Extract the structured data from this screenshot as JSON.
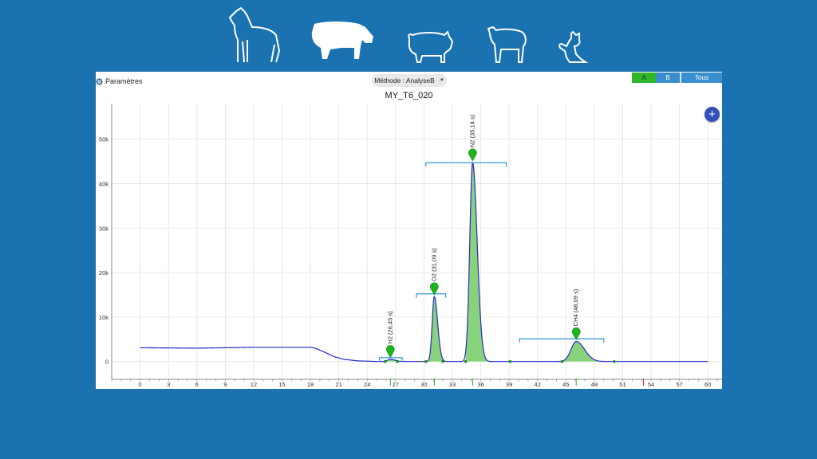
{
  "animals": [
    {
      "name": "horse",
      "selected": false
    },
    {
      "name": "cow",
      "selected": true
    },
    {
      "name": "pig",
      "selected": false
    },
    {
      "name": "sheep",
      "selected": false
    },
    {
      "name": "cat",
      "selected": false
    }
  ],
  "toolbar": {
    "params_label": "Paramètres",
    "params_icon": "gear-icon",
    "method_label": "Méthode : AnalyseB",
    "segments": [
      "A",
      "B",
      "Tous"
    ],
    "active_segment": "A"
  },
  "colors": {
    "background": "#1a72b1",
    "trace": "#2929cc",
    "peak_fill": "#88d27c",
    "bracket": "#2f9ad6",
    "marker": "#1fb41f",
    "accent_button": "#3350b8"
  },
  "chart_data": {
    "type": "line",
    "title": "MY_T6_020",
    "xlim": [
      -3,
      61.5
    ],
    "ylim": [
      -4000,
      58000
    ],
    "x_ticks": [
      0,
      3,
      6,
      9,
      12,
      15,
      18,
      21,
      24,
      27,
      30,
      33,
      36,
      39,
      42,
      45,
      48,
      51,
      54,
      57,
      60
    ],
    "y_ticks": [
      {
        "value": 0,
        "label": "0"
      },
      {
        "value": 10000,
        "label": "10k"
      },
      {
        "value": 20000,
        "label": "20k"
      },
      {
        "value": 30000,
        "label": "30k"
      },
      {
        "value": 40000,
        "label": "40k"
      },
      {
        "value": 50000,
        "label": "50k"
      }
    ],
    "grid": true,
    "baseline": [
      [
        0,
        3100
      ],
      [
        6,
        3000
      ],
      [
        12,
        3200
      ],
      [
        18,
        3200
      ],
      [
        18.5,
        3000
      ],
      [
        19.5,
        2100
      ],
      [
        20.5,
        1100
      ],
      [
        21.5,
        500
      ],
      [
        23,
        150
      ],
      [
        25,
        0
      ],
      [
        60,
        0
      ]
    ],
    "peaks": [
      {
        "name": "H2 (26,45 s)",
        "rt": 26.45,
        "height": 500,
        "width": 0.3,
        "bracket": [
          25.3,
          27.7
        ],
        "bracket_y": 150,
        "integration": [
          25.9,
          27.2
        ]
      },
      {
        "name": "O2 (31,09 s)",
        "rt": 31.09,
        "height": 14600,
        "width": 0.22,
        "bracket": [
          29.2,
          32.3
        ],
        "bracket_y": 14500,
        "integration": [
          30.2,
          32.0
        ]
      },
      {
        "name": "N2 (35,14 s)",
        "rt": 35.14,
        "height": 44700,
        "width": 0.3,
        "bracket": [
          30.2,
          38.7
        ],
        "bracket_y": 44000,
        "integration": [
          34.4,
          39.1
        ]
      },
      {
        "name": "CH4 (46,09 s)",
        "rt": 46.09,
        "height": 4500,
        "width": 0.55,
        "bracket": [
          40.1,
          49.0
        ],
        "bracket_y": 4400,
        "integration": [
          44.6,
          50.1
        ]
      }
    ],
    "vertical_markers": [
      {
        "x": 26.45,
        "color": "#1fb41f"
      },
      {
        "x": 31.09,
        "color": "#1fb41f"
      },
      {
        "x": 35.14,
        "color": "#1fb41f"
      },
      {
        "x": 46.09,
        "color": "#1fb41f"
      },
      {
        "x": 53.2,
        "color": "#e02020"
      }
    ]
  }
}
